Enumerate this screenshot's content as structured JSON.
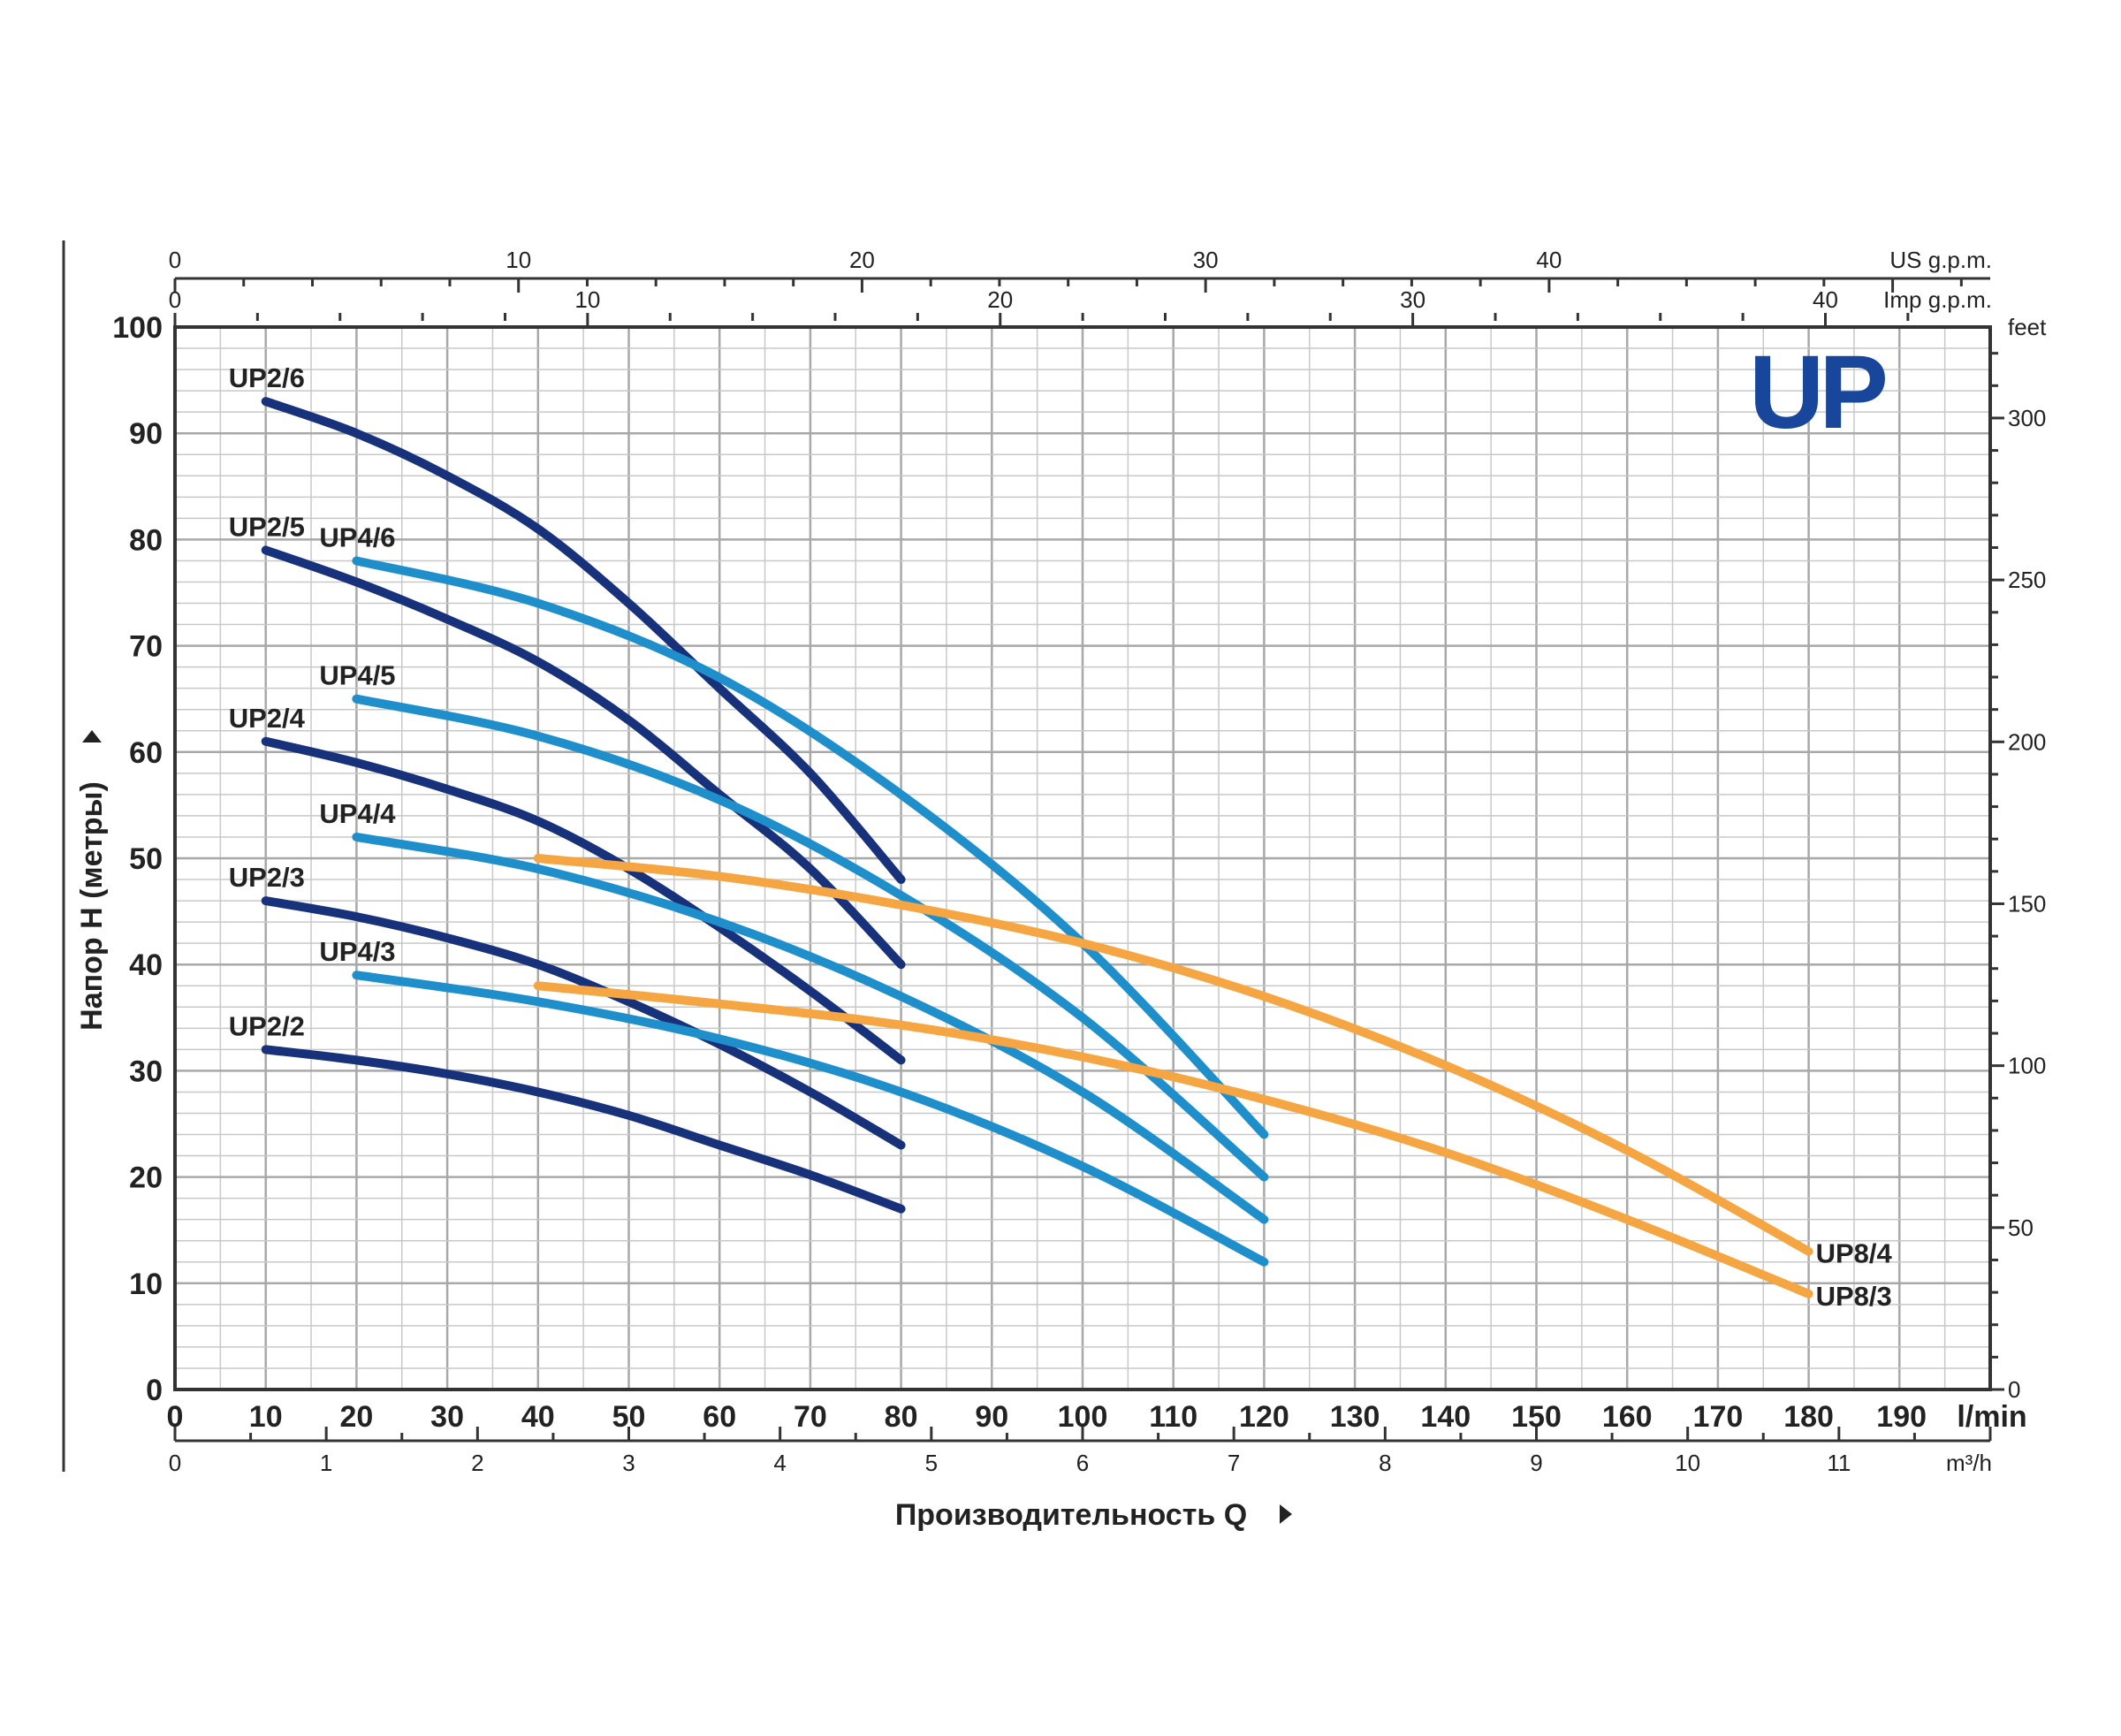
{
  "chart_data": {
    "type": "line",
    "brand_logo": "UP",
    "xlabel": "Производительность Q",
    "ylabel": "Напор H (метры)",
    "x_unit": "l/min",
    "x_main_ticks": [
      0,
      10,
      20,
      30,
      40,
      50,
      60,
      70,
      80,
      90,
      100,
      110,
      120,
      130,
      140,
      150,
      160,
      170,
      180,
      190
    ],
    "xlim": [
      0,
      200
    ],
    "ylim": [
      0,
      100
    ],
    "y_ticks": [
      0,
      10,
      20,
      30,
      40,
      50,
      60,
      70,
      80,
      90,
      100
    ],
    "secondary_axes": {
      "us_gpm": {
        "label": "US g.p.m.",
        "ticks": [
          0,
          10,
          20,
          30,
          40
        ]
      },
      "imp_gpm": {
        "label": "Imp g.p.m.",
        "ticks": [
          0,
          10,
          20,
          30,
          40
        ]
      },
      "feet": {
        "label": "feet",
        "ticks": [
          0,
          50,
          100,
          150,
          200,
          250,
          300
        ]
      },
      "m3h": {
        "label": "m³/h",
        "ticks": [
          0,
          1,
          2,
          3,
          4,
          5,
          6,
          7,
          8,
          9,
          10,
          11
        ]
      }
    },
    "grid": true,
    "colors": {
      "UP2": "#17317a",
      "UP4": "#1f8fcc",
      "UP8": "#f5a642"
    },
    "series": [
      {
        "name": "UP2/6",
        "color": "#17317a",
        "x": [
          10,
          20,
          30,
          40,
          50,
          60,
          70,
          80
        ],
        "y": [
          93,
          90,
          86,
          81,
          74,
          66,
          58,
          48
        ]
      },
      {
        "name": "UP2/5",
        "color": "#17317a",
        "x": [
          10,
          20,
          30,
          40,
          50,
          60,
          70,
          80
        ],
        "y": [
          79,
          76,
          72.5,
          68.5,
          63,
          56,
          49,
          40
        ]
      },
      {
        "name": "UP2/4",
        "color": "#17317a",
        "x": [
          10,
          20,
          30,
          40,
          50,
          60,
          70,
          80
        ],
        "y": [
          61,
          59,
          56.5,
          53.5,
          49,
          43.5,
          37.5,
          31
        ]
      },
      {
        "name": "UP2/3",
        "color": "#17317a",
        "x": [
          10,
          20,
          30,
          40,
          50,
          60,
          70,
          80
        ],
        "y": [
          46,
          44.5,
          42.5,
          40,
          36.5,
          32.5,
          28,
          23
        ]
      },
      {
        "name": "UP2/2",
        "color": "#17317a",
        "x": [
          10,
          20,
          30,
          40,
          50,
          60,
          70,
          80
        ],
        "y": [
          32,
          31,
          29.7,
          28,
          25.8,
          23,
          20.2,
          17
        ]
      },
      {
        "name": "UP4/6",
        "color": "#1f8fcc",
        "x": [
          20,
          40,
          60,
          80,
          100,
          120
        ],
        "y": [
          78,
          74,
          67,
          56,
          42,
          24
        ]
      },
      {
        "name": "UP4/5",
        "color": "#1f8fcc",
        "x": [
          20,
          40,
          60,
          80,
          100,
          120
        ],
        "y": [
          65,
          61.5,
          55.5,
          46.5,
          35,
          20
        ]
      },
      {
        "name": "UP4/4",
        "color": "#1f8fcc",
        "x": [
          20,
          40,
          60,
          80,
          100,
          120
        ],
        "y": [
          52,
          49,
          44,
          37,
          28,
          16
        ]
      },
      {
        "name": "UP4/3",
        "color": "#1f8fcc",
        "x": [
          20,
          40,
          60,
          80,
          100,
          120
        ],
        "y": [
          39,
          36.5,
          33,
          28,
          21,
          12
        ]
      },
      {
        "name": "UP8/4",
        "color": "#f5a642",
        "x": [
          40,
          60,
          80,
          100,
          120,
          140,
          160,
          180
        ],
        "y": [
          50,
          48.3,
          45.6,
          42,
          37,
          30.5,
          22.5,
          13
        ]
      },
      {
        "name": "UP8/3",
        "color": "#f5a642",
        "x": [
          40,
          60,
          80,
          100,
          120,
          140,
          160,
          180
        ],
        "y": [
          38,
          36.3,
          34.3,
          31.3,
          27.3,
          22.3,
          16,
          9
        ]
      }
    ]
  }
}
